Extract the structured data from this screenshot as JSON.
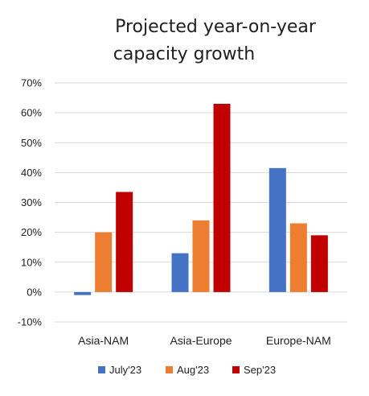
{
  "chart_data": {
    "type": "bar",
    "title_lines": [
      "Projected year-on-year",
      "capacity growth"
    ],
    "categories": [
      "Asia-NAM",
      "Asia-Europe",
      "Europe-NAM"
    ],
    "series": [
      {
        "name": "July'23",
        "color": "#4472c4",
        "values": [
          -1,
          13,
          41.5
        ]
      },
      {
        "name": "Aug'23",
        "color": "#ed7d31",
        "values": [
          20,
          24,
          23
        ]
      },
      {
        "name": "Sep'23",
        "color": "#c00000",
        "values": [
          33.5,
          63,
          19
        ]
      }
    ],
    "ylim": [
      -10,
      70
    ],
    "yticks": [
      70,
      60,
      50,
      40,
      30,
      20,
      10,
      0,
      -10
    ],
    "ytick_labels": [
      "70%",
      "60%",
      "50%",
      "40%",
      "30%",
      "20%",
      "10%",
      "0%",
      "-10%"
    ],
    "grid": true,
    "legend_position": "bottom"
  }
}
